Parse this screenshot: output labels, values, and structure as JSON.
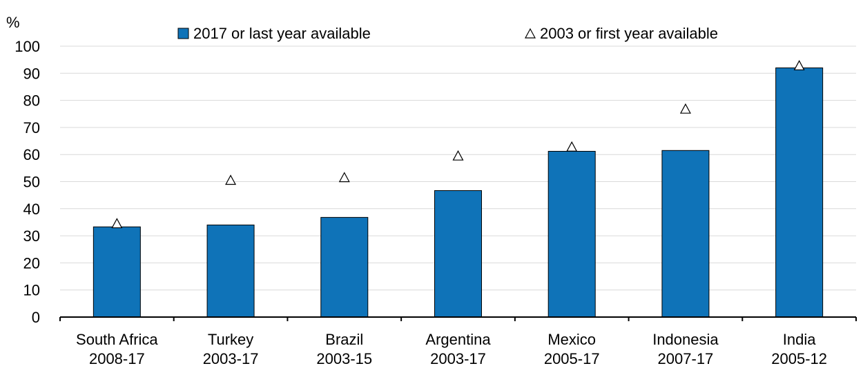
{
  "chart_data": {
    "type": "bar",
    "y_unit_label": "%",
    "ylim": [
      0,
      100
    ],
    "y_ticks": [
      0,
      10,
      20,
      30,
      40,
      50,
      60,
      70,
      80,
      90,
      100
    ],
    "grid": true,
    "legend_position": "top",
    "categories": [
      {
        "name": "South Africa",
        "period": "2008-17"
      },
      {
        "name": "Turkey",
        "period": "2003-17"
      },
      {
        "name": "Brazil",
        "period": "2003-15"
      },
      {
        "name": "Argentina",
        "period": "2003-17"
      },
      {
        "name": "Mexico",
        "period": "2005-17"
      },
      {
        "name": "Indonesia",
        "period": "2007-17"
      },
      {
        "name": "India",
        "period": "2005-12"
      }
    ],
    "series": [
      {
        "name": "2017 or last year available",
        "kind": "bar",
        "color": "#0f73b8",
        "values": [
          33.3,
          34.0,
          36.8,
          46.7,
          61.2,
          61.5,
          92.0
        ]
      },
      {
        "name": "2003 or first year available",
        "kind": "marker",
        "marker": "triangle-icon",
        "values": [
          34.5,
          50.5,
          51.5,
          59.5,
          62.8,
          76.8,
          92.8
        ]
      }
    ]
  }
}
